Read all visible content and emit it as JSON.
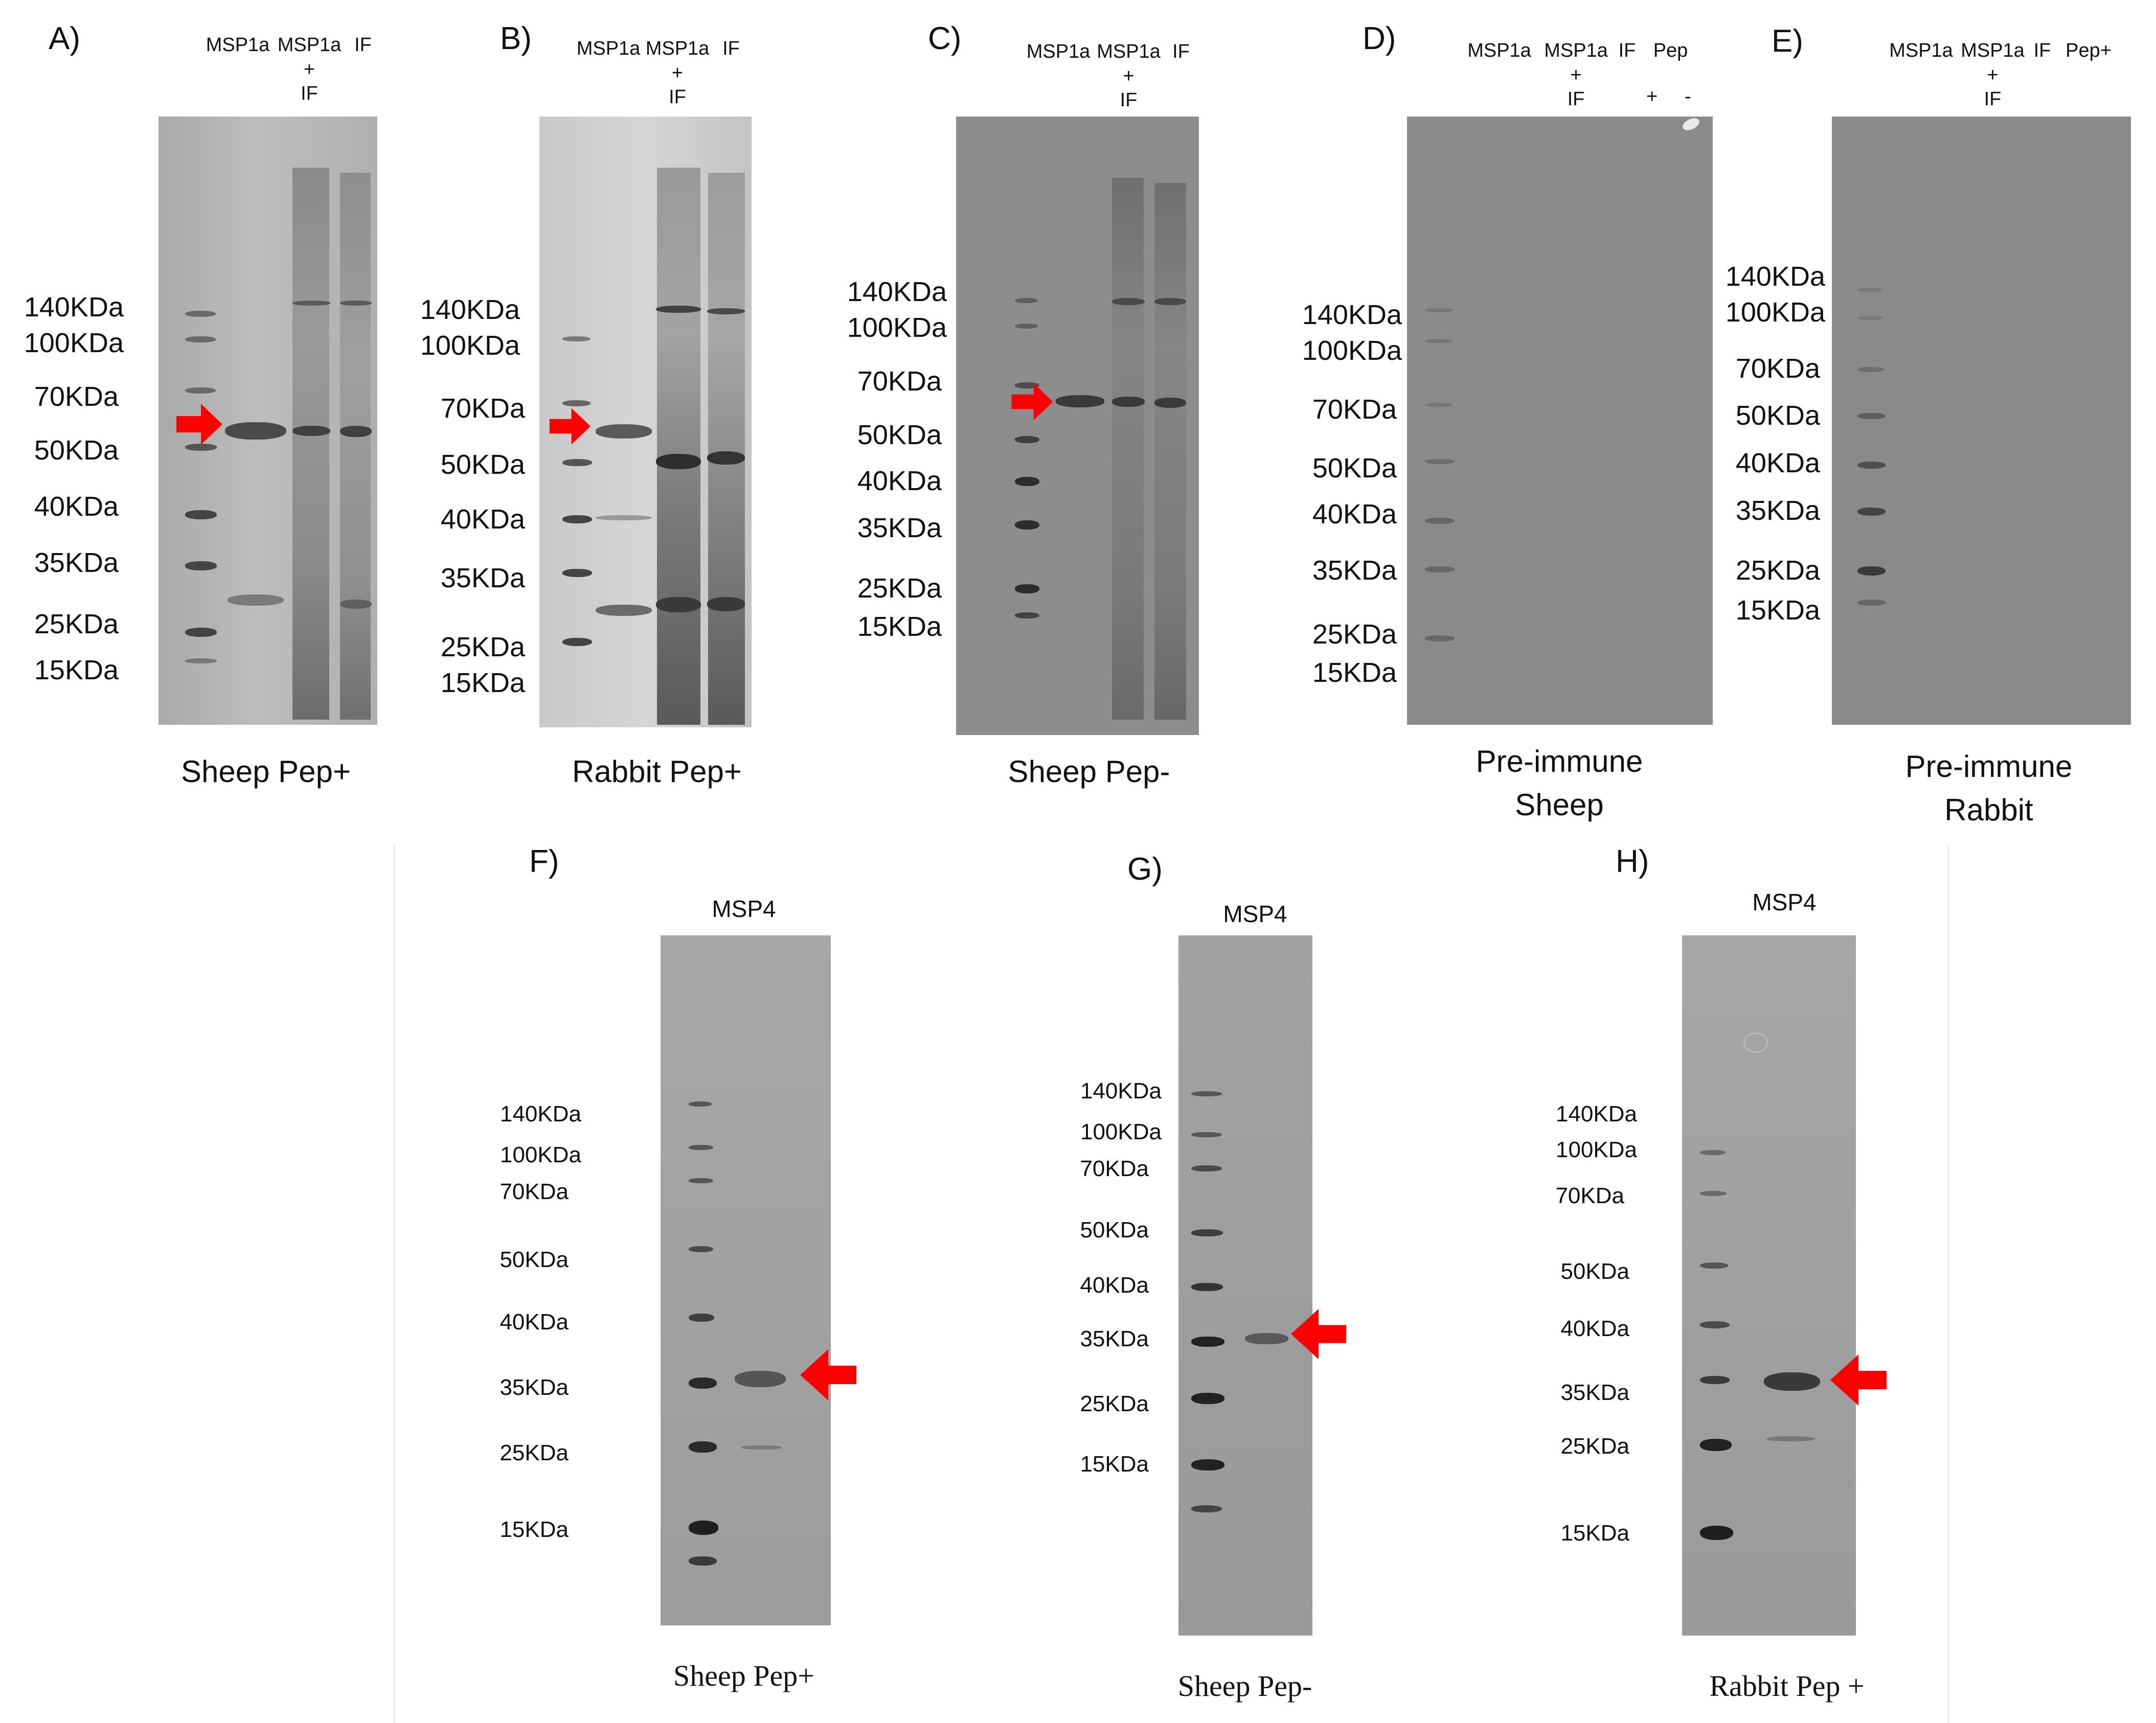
{
  "panels_top": [
    {
      "letter": "A)",
      "lanes": [
        "MSP1a",
        "MSP1a\n+\nIF",
        "IF"
      ],
      "markers": [
        "140KDa",
        "100KDa",
        "70KDa",
        "50KDa",
        "40KDa",
        "35KDa",
        "25KDa",
        "15KDa"
      ],
      "caption": "Sheep Pep+"
    },
    {
      "letter": "B)",
      "lanes": [
        "MSP1a",
        "MSP1a\n+\nIF",
        "IF"
      ],
      "markers": [
        "140KDa",
        "100KDa",
        "70KDa",
        "50KDa",
        "40KDa",
        "35KDa",
        "25KDa",
        "15KDa"
      ],
      "caption": "Rabbit Pep+"
    },
    {
      "letter": "C)",
      "lanes": [
        "MSP1a",
        "MSP1a\n+\nIF",
        "IF"
      ],
      "markers": [
        "140KDa",
        "100KDa",
        "70KDa",
        "50KDa",
        "40KDa",
        "35KDa",
        "25KDa",
        "15KDa"
      ],
      "caption": "Sheep Pep-"
    },
    {
      "letter": "D)",
      "lanes": [
        "MSP1a",
        "MSP1a\n+\nIF",
        "IF",
        "Pep"
      ],
      "pep_signs": [
        "+",
        "-"
      ],
      "markers": [
        "140KDa",
        "100KDa",
        "70KDa",
        "50KDa",
        "40KDa",
        "35KDa",
        "25KDa",
        "15KDa"
      ],
      "caption_line1": "Pre-immune",
      "caption_line2": "Sheep"
    },
    {
      "letter": "E)",
      "lanes": [
        "MSP1a",
        "MSP1a\n+\nIF",
        "IF",
        "Pep+"
      ],
      "markers": [
        "140KDa",
        "100KDa",
        "70KDa",
        "50KDa",
        "40KDa",
        "35KDa",
        "25KDa",
        "15KDa"
      ],
      "caption_line1": "Pre-immune",
      "caption_line2": "Rabbit"
    }
  ],
  "panels_bottom": [
    {
      "letter": "F)",
      "lane": "MSP4",
      "markers": [
        "140KDa",
        "100KDa",
        "70KDa",
        "50KDa",
        "40KDa",
        "35KDa",
        "25KDa",
        "15KDa"
      ],
      "caption": "Sheep Pep+"
    },
    {
      "letter": "G)",
      "lane": "MSP4",
      "markers": [
        "140KDa",
        "100KDa",
        "70KDa",
        "50KDa",
        "40KDa",
        "35KDa",
        "25KDa",
        "15KDa"
      ],
      "caption": "Sheep Pep-"
    },
    {
      "letter": "H)",
      "lane": "MSP4",
      "markers": [
        "140KDa",
        "100KDa",
        "70KDa",
        "50KDa",
        "40KDa",
        "35KDa",
        "25KDa",
        "15KDa"
      ],
      "caption": "Rabbit Pep +"
    }
  ],
  "colors": {
    "arrow": "#ff0000",
    "band": "#2e2e2e",
    "text": "#111111"
  }
}
